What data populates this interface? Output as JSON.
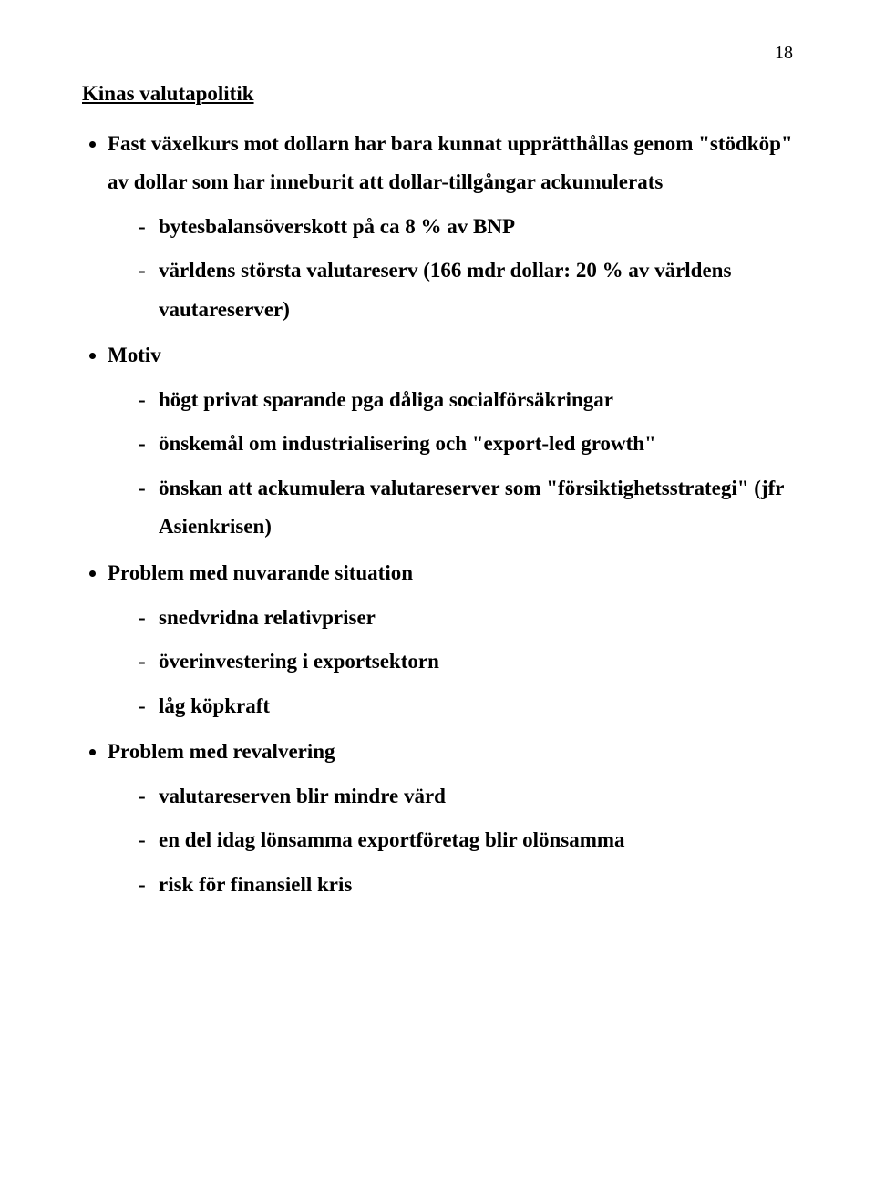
{
  "page_number": "18",
  "title": "Kinas valutapolitik",
  "items": [
    {
      "text": "Fast växelkurs mot dollarn har bara kunnat upprätthållas genom \"stödköp\" av dollar som har inneburit att dollar-tillgångar ackumulerats",
      "sub": [
        "bytesbalansöverskott på ca 8 % av BNP",
        "världens största valutareserv (166 mdr dollar: 20 % av världens vautareserver)"
      ]
    },
    {
      "text": "Motiv",
      "sub": [
        "högt privat sparande pga dåliga socialförsäkringar",
        "önskemål om industrialisering och \"export-led growth\"",
        "önskan att ackumulera valutareserver som \"försiktighetsstrategi\" (jfr Asienkrisen)"
      ]
    },
    {
      "text": "Problem med nuvarande situation",
      "sub": [
        "snedvridna relativpriser",
        "överinvestering i exportsektorn",
        "låg köpkraft"
      ]
    },
    {
      "text": "Problem med revalvering",
      "sub": [
        "valutareserven blir mindre värd",
        "en del idag lönsamma exportföretag blir olönsamma",
        "risk för finansiell kris"
      ]
    }
  ]
}
